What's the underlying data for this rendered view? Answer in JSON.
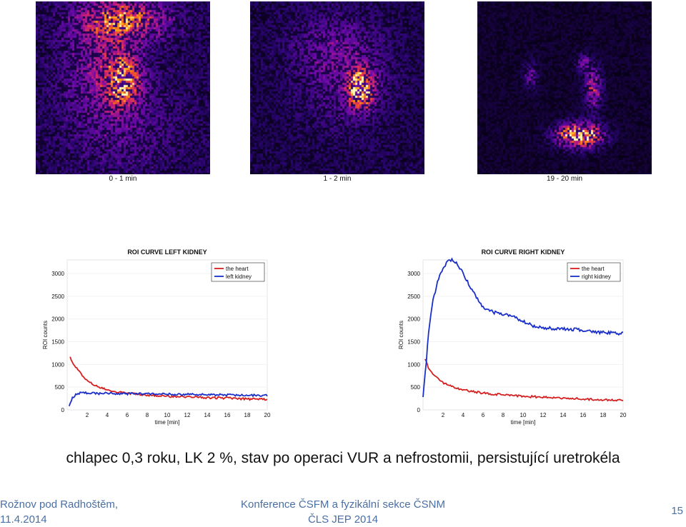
{
  "scans": [
    {
      "label": "0 - 1 min"
    },
    {
      "label": "1 - 2 min"
    },
    {
      "label": "19 - 20 min"
    }
  ],
  "chart_data": [
    {
      "type": "line",
      "title": "ROI CURVE LEFT KIDNEY",
      "xlabel": "time [min]",
      "ylabel": "ROI counts",
      "xlim": [
        0,
        20
      ],
      "ylim": [
        0,
        3300
      ],
      "xticks": [
        2,
        4,
        6,
        8,
        10,
        12,
        14,
        16,
        18,
        20
      ],
      "yticks": [
        0,
        500,
        1000,
        1500,
        2000,
        2500,
        3000
      ],
      "legend_position": "top-right",
      "series": [
        {
          "name": "the heart",
          "color": "#d62020",
          "x": [
            0.3,
            0.6,
            1,
            1.5,
            2,
            3,
            4,
            5,
            6,
            7,
            8,
            10,
            12,
            14,
            16,
            18,
            20
          ],
          "y": [
            1150,
            1020,
            900,
            760,
            640,
            520,
            440,
            400,
            370,
            350,
            330,
            300,
            290,
            270,
            260,
            240,
            230
          ]
        },
        {
          "name": "left kidney",
          "color": "#1a2fc8",
          "x": [
            0.2,
            0.5,
            1,
            1.5,
            2,
            3,
            4,
            5,
            6,
            7,
            8,
            10,
            12,
            14,
            16,
            18,
            20
          ],
          "y": [
            100,
            260,
            360,
            380,
            370,
            360,
            365,
            360,
            355,
            360,
            350,
            345,
            340,
            335,
            330,
            320,
            320
          ]
        }
      ]
    },
    {
      "type": "line",
      "title": "ROI CURVE RIGHT KIDNEY",
      "xlabel": "time [min]",
      "ylabel": "ROI counts",
      "xlim": [
        0,
        20
      ],
      "ylim": [
        0,
        3300
      ],
      "xticks": [
        2,
        4,
        6,
        8,
        10,
        12,
        14,
        16,
        18,
        20
      ],
      "yticks": [
        0,
        500,
        1000,
        1500,
        2000,
        2500,
        3000
      ],
      "legend_position": "top-right",
      "series": [
        {
          "name": "the heart",
          "color": "#d62020",
          "x": [
            0.2,
            0.5,
            1,
            1.5,
            2,
            3,
            4,
            5,
            6,
            7,
            8,
            10,
            12,
            14,
            16,
            18,
            20
          ],
          "y": [
            1100,
            950,
            800,
            680,
            600,
            500,
            440,
            400,
            370,
            350,
            330,
            300,
            280,
            260,
            240,
            220,
            210
          ]
        },
        {
          "name": "right kidney",
          "color": "#1a2fc8",
          "x": [
            0,
            0.3,
            0.6,
            1,
            1.5,
            2,
            2.5,
            3,
            3.5,
            4,
            5,
            6,
            7,
            8,
            9,
            10,
            11,
            12,
            14,
            16,
            18,
            20
          ],
          "y": [
            300,
            1000,
            1800,
            2400,
            2850,
            3120,
            3280,
            3300,
            3200,
            3000,
            2600,
            2250,
            2150,
            2100,
            2050,
            1950,
            1850,
            1800,
            1780,
            1760,
            1700,
            1680
          ]
        }
      ]
    }
  ],
  "caption": "chlapec 0,3 roku, LK 2 %, stav po operaci VUR a nefrostomii, persistující uretrokéla",
  "footer": {
    "left_line1": "Rožnov pod Radhoštěm,",
    "left_line2": "11.4.2014",
    "center_line1": "Konference ČSFM a fyzikální sekce ČSNM",
    "center_line2": "ČLS JEP 2014",
    "page": "15"
  }
}
